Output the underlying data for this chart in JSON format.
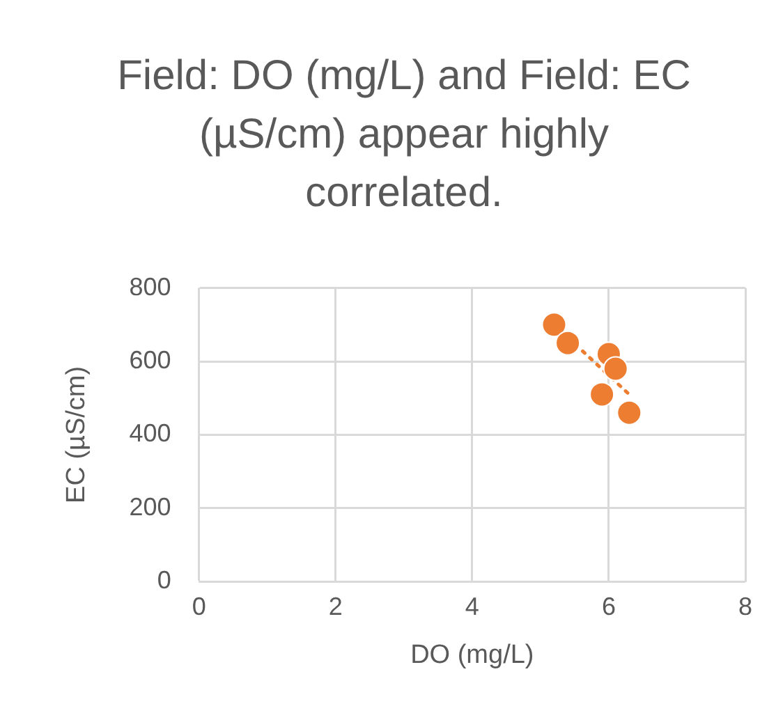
{
  "chart_data": {
    "type": "scatter",
    "title": "Field: DO (mg/L) and Field: EC (µS/cm) appear highly correlated.",
    "xlabel": "DO (mg/L)",
    "ylabel": "EC (µS/cm)",
    "series": [
      {
        "type": "scatter",
        "color": "#ed7d31",
        "x": [
          5.2,
          5.4,
          6.0,
          6.1,
          5.9,
          6.3
        ],
        "values": [
          700,
          650,
          620,
          580,
          510,
          460
        ],
        "marker": "circle"
      },
      {
        "type": "line",
        "color": "#ed7d31",
        "x": [
          5.2,
          6.3
        ],
        "values": [
          700,
          510
        ],
        "marker": "none",
        "line_style": "dotted"
      }
    ],
    "xlim": [
      0,
      8
    ],
    "xticks": [
      0,
      2,
      4,
      6,
      8
    ],
    "ylim": [
      0,
      800
    ],
    "yticks": [
      0,
      200,
      400,
      600,
      800
    ],
    "grid": true,
    "legend": false
  }
}
